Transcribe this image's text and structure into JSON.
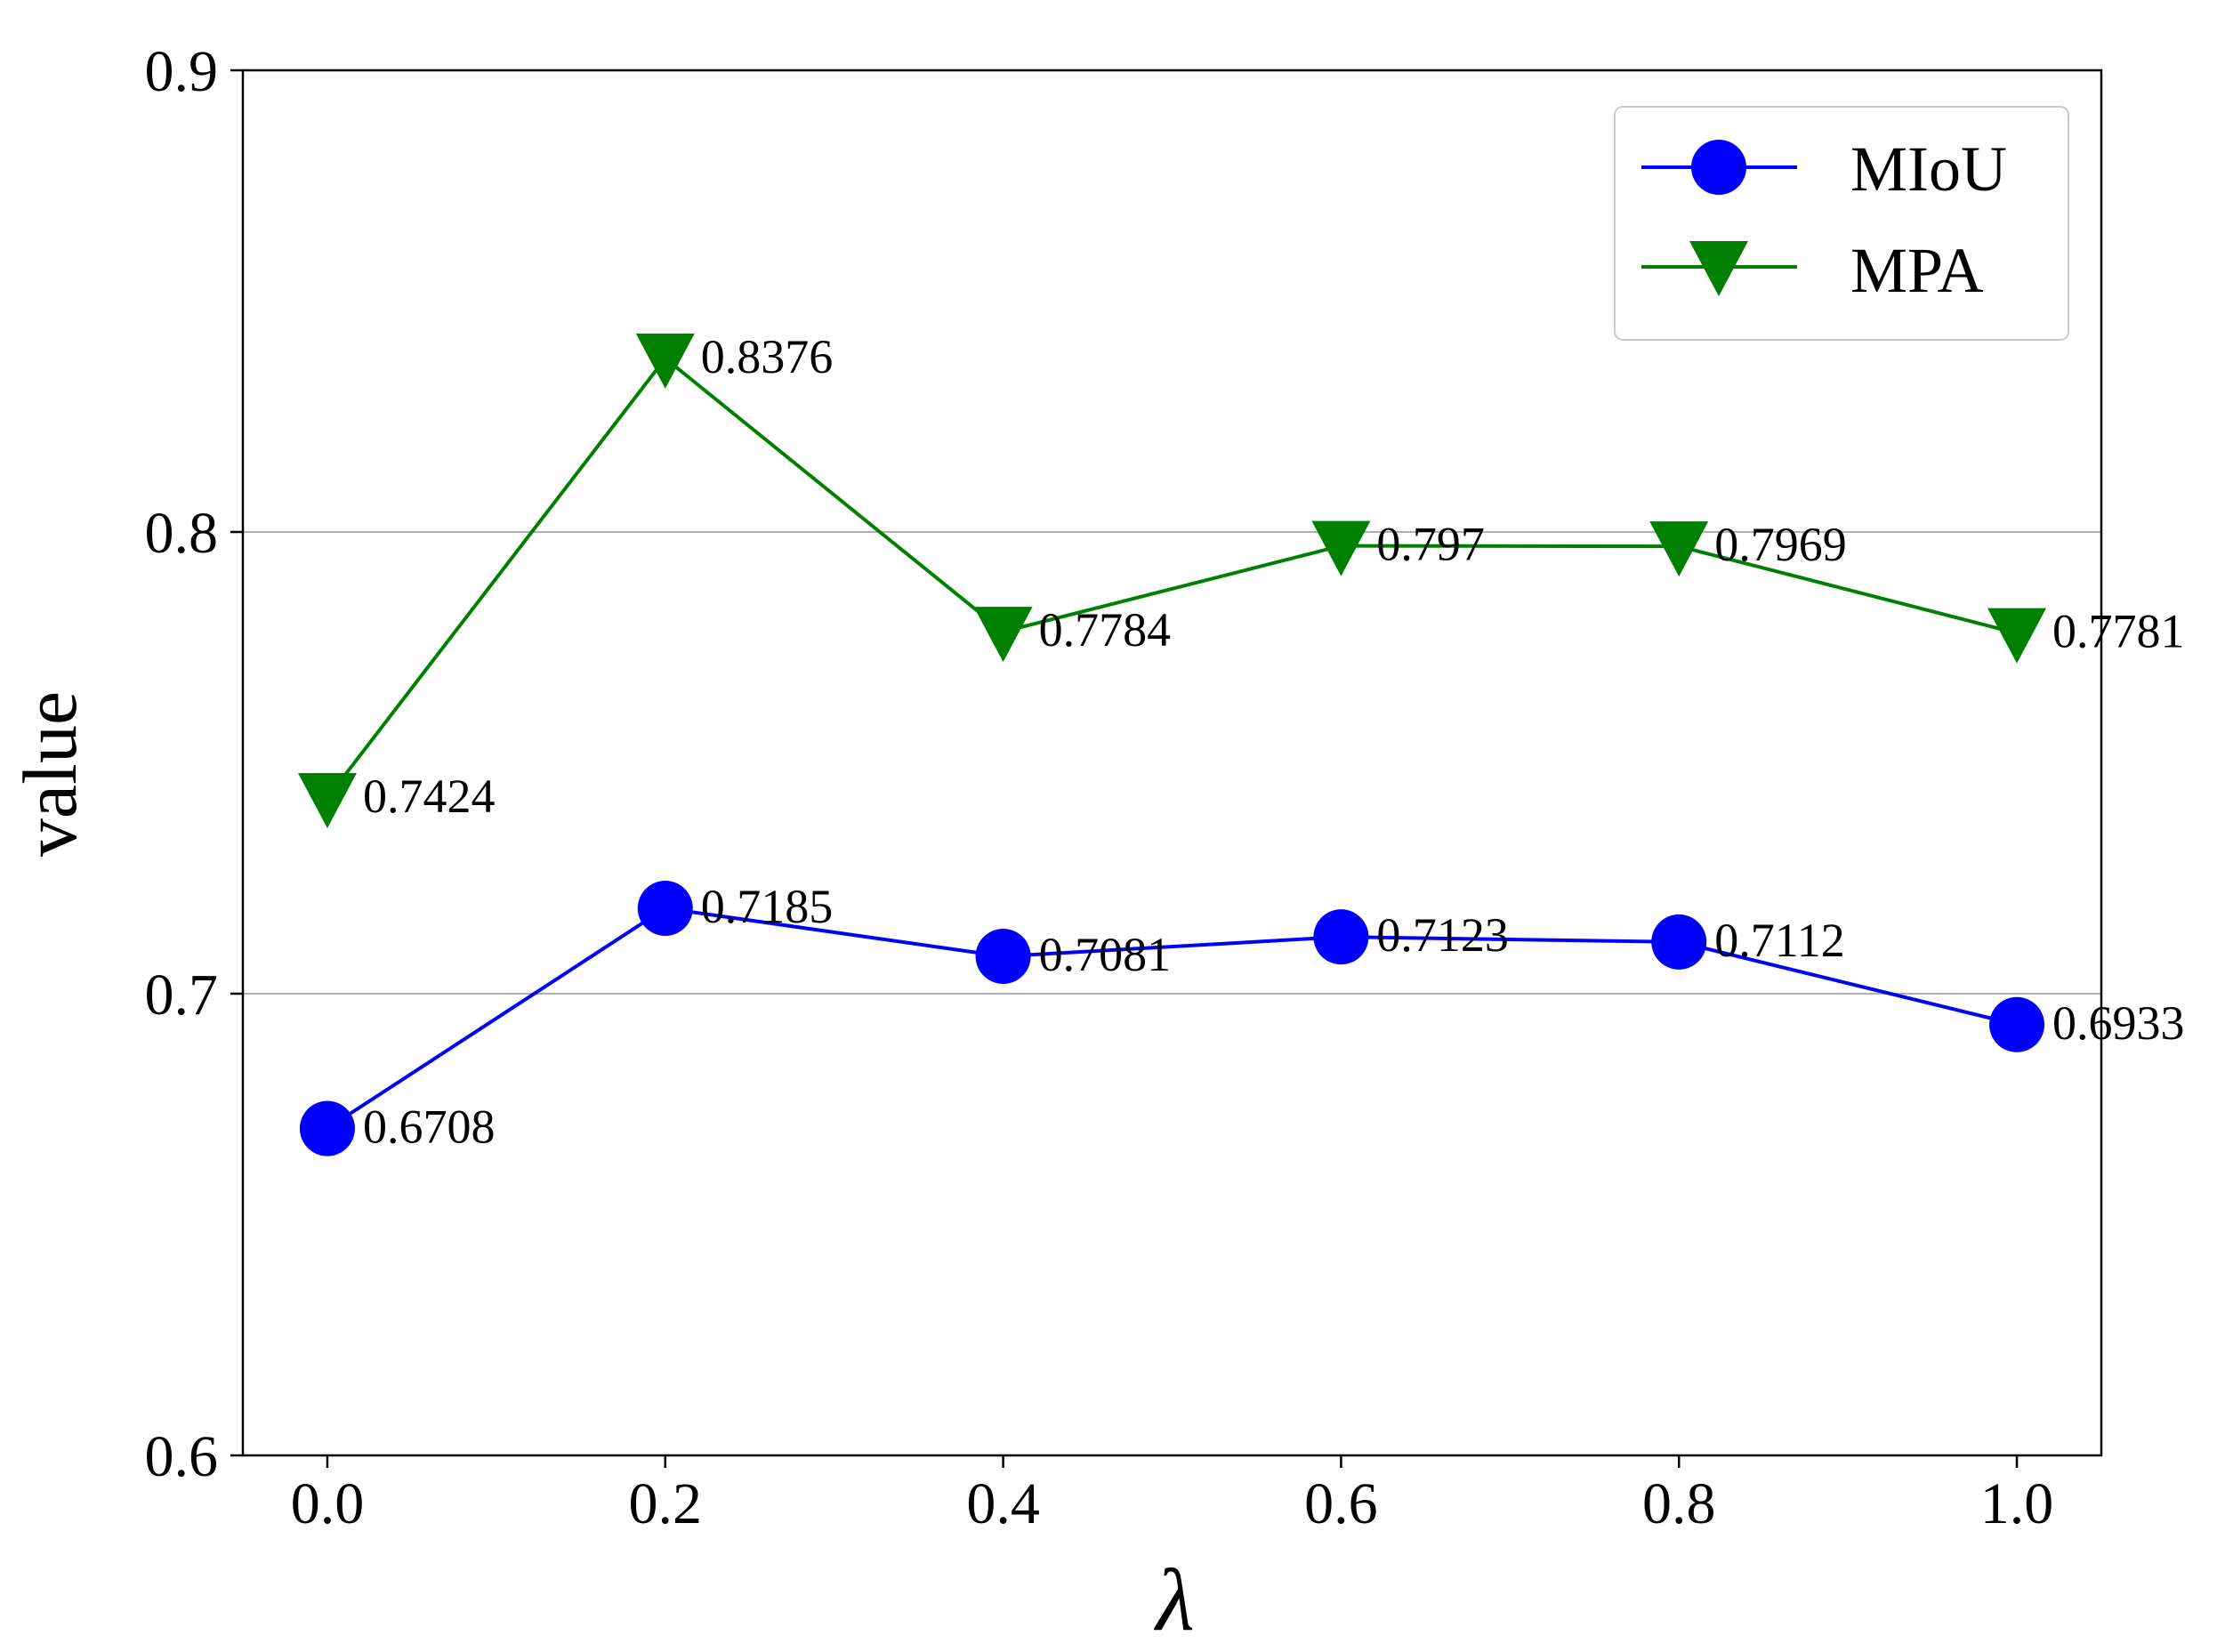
{
  "chart_data": {
    "type": "line",
    "title": "",
    "xlabel": "λ",
    "ylabel": "value",
    "x": [
      0.0,
      0.2,
      0.4,
      0.6,
      0.8,
      1.0
    ],
    "x_tick_labels": [
      "0.0",
      "0.2",
      "0.4",
      "0.6",
      "0.8",
      "1.0"
    ],
    "xlim": [
      -0.05,
      1.05
    ],
    "ylim": [
      0.6,
      0.9
    ],
    "y_ticks": [
      0.6,
      0.7,
      0.8,
      0.9
    ],
    "y_tick_labels": [
      "0.6",
      "0.7",
      "0.8",
      "0.9"
    ],
    "grid": "horizontal",
    "legend_position": "top-right",
    "series": [
      {
        "name": "MIoU",
        "color": "#0000ff",
        "marker": "circle",
        "values": [
          0.6708,
          0.7185,
          0.7081,
          0.7123,
          0.7112,
          0.6933
        ],
        "labels": [
          "0.6708",
          "0.7185",
          "0.7081",
          "0.7123",
          "0.7112",
          "0.6933"
        ]
      },
      {
        "name": "MPA",
        "color": "#008000",
        "marker": "triangle-down",
        "values": [
          0.7424,
          0.8376,
          0.7784,
          0.797,
          0.7969,
          0.7781
        ],
        "labels": [
          "0.7424",
          "0.8376",
          "0.7784",
          "0.797",
          "0.7969",
          "0.7781"
        ]
      }
    ]
  }
}
